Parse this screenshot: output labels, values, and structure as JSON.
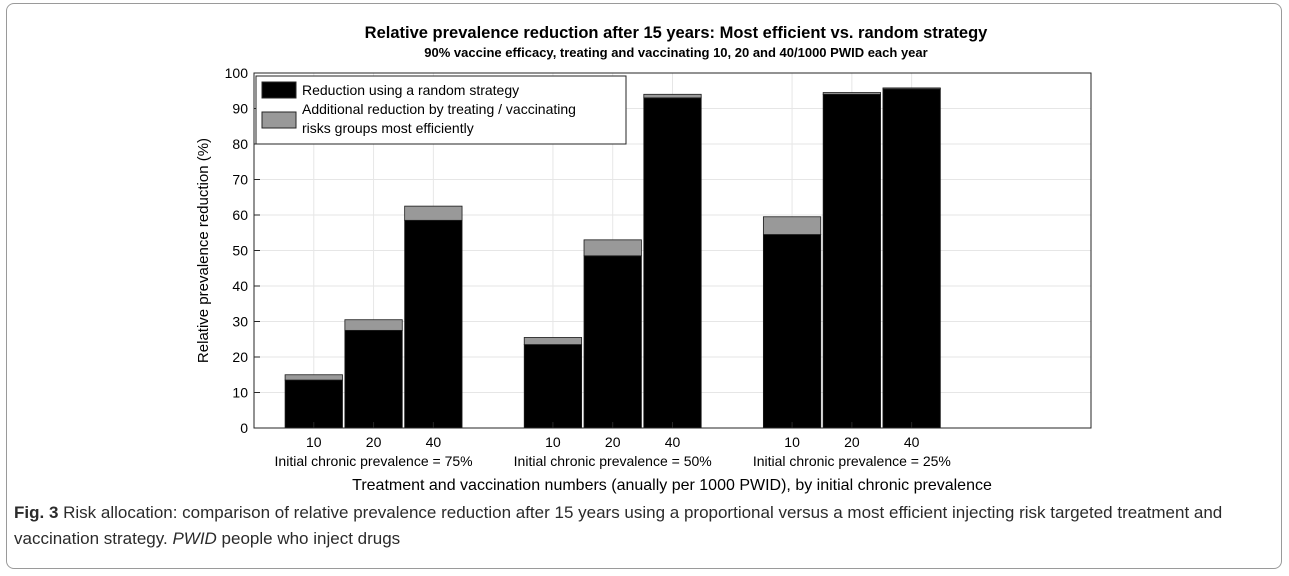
{
  "chart_data": {
    "type": "bar",
    "stacked": true,
    "title": "Relative prevalence reduction after 15 years: Most efficient vs. random strategy",
    "subtitle": "90% vaccine efficacy, treating and vaccinating 10, 20 and 40/1000 PWID each year",
    "xlabel": "Treatment and vaccination numbers (anually per 1000 PWID), by initial chronic prevalence",
    "ylabel": "Relative prevalence reduction (%)",
    "ylim": [
      0,
      100
    ],
    "yticks": [
      "0",
      "10",
      "20",
      "30",
      "40",
      "50",
      "60",
      "70",
      "80",
      "90",
      "100"
    ],
    "grid": true,
    "legend_position": "top-left",
    "groups": [
      {
        "label": "Initial chronic prevalence = 75%",
        "categories": [
          "10",
          "20",
          "40"
        ]
      },
      {
        "label": "Initial chronic prevalence = 50%",
        "categories": [
          "10",
          "20",
          "40"
        ]
      },
      {
        "label": "Initial chronic prevalence = 25%",
        "categories": [
          "10",
          "20",
          "40"
        ]
      }
    ],
    "series": [
      {
        "name": "Reduction using a random strategy",
        "color": "#000000",
        "values": [
          13.5,
          27.5,
          58.5,
          23.5,
          48.5,
          93,
          54.5,
          94,
          95.5
        ]
      },
      {
        "name": "Additional reduction by treating / vaccinating risks groups most efficiently",
        "color": "#999999",
        "values": [
          1.5,
          3,
          4,
          2,
          4.5,
          1,
          5,
          0.5,
          0.3
        ]
      }
    ]
  },
  "caption": {
    "fig_label": "Fig. 3",
    "text_1": " Risk allocation: comparison of relative prevalence reduction after 15 years using a proportional versus a most efficient injecting risk targeted treatment and vaccination strategy. ",
    "abbr": "PWID",
    "text_2": " people who inject drugs"
  }
}
